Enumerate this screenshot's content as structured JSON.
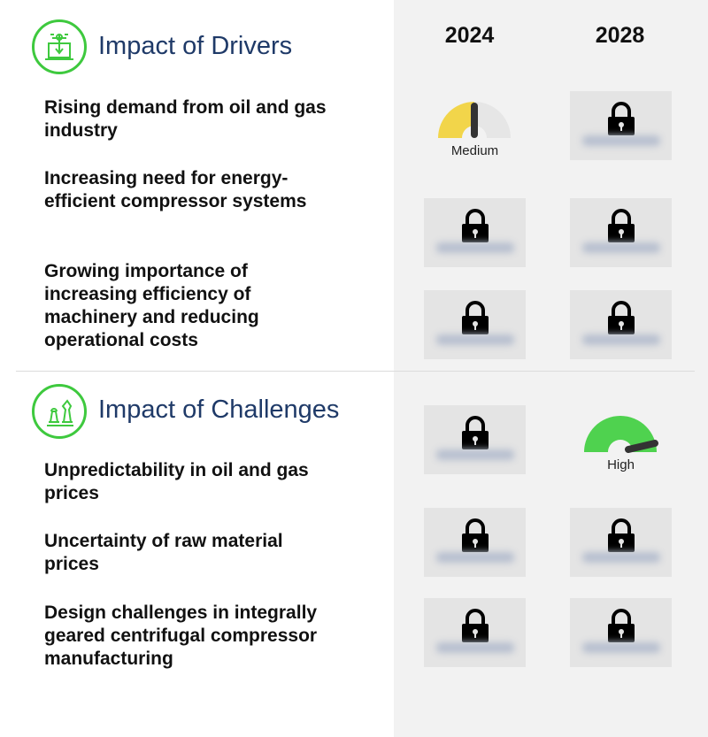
{
  "years": [
    "2024",
    "2028"
  ],
  "drivers": {
    "title": "Impact of Drivers",
    "icon": "laptop-circuit-icon",
    "items": [
      {
        "label": "Rising demand from oil and gas industry",
        "y2024": {
          "type": "gauge",
          "level": "Medium"
        },
        "y2028": {
          "type": "locked"
        }
      },
      {
        "label": "Increasing need for energy-efficient compressor systems",
        "y2024": {
          "type": "locked"
        },
        "y2028": {
          "type": "locked"
        }
      },
      {
        "label": "Growing importance of increasing efficiency of machinery and reducing operational costs",
        "y2024": {
          "type": "locked"
        },
        "y2028": {
          "type": "locked"
        }
      }
    ]
  },
  "challenges": {
    "title": "Impact of Challenges",
    "icon": "chess-pieces-icon",
    "items": [
      {
        "label": "Unpredictability in oil and gas prices",
        "y2024": {
          "type": "locked"
        },
        "y2028": {
          "type": "gauge",
          "level": "High"
        }
      },
      {
        "label": "Uncertainty of raw material prices",
        "y2024": {
          "type": "locked"
        },
        "y2028": {
          "type": "locked"
        }
      },
      {
        "label": "Design challenges in integrally geared centrifugal compressor manufacturing",
        "y2024": {
          "type": "locked"
        },
        "y2028": {
          "type": "locked"
        }
      }
    ]
  },
  "colors": {
    "medium": "#f2d54a",
    "high": "#4fd24f",
    "accent": "#3ec93e",
    "title": "#1f3a68"
  }
}
